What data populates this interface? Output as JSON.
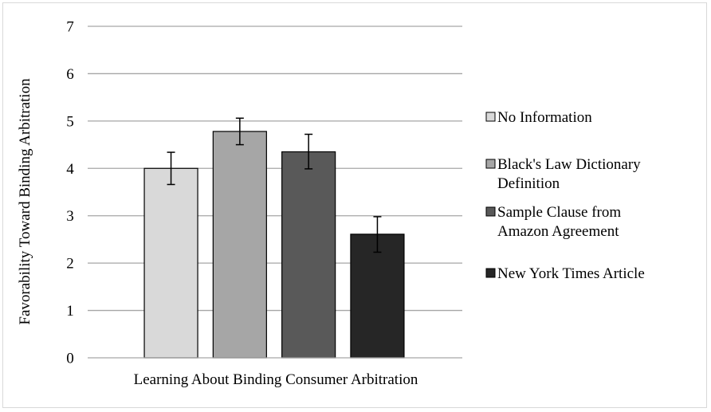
{
  "chart_data": {
    "type": "bar",
    "title": "",
    "xlabel": "Learning About Binding Consumer Arbitration",
    "ylabel": "Favorability Toward Binding Arbitration",
    "ylim": [
      0,
      7
    ],
    "yticks": [
      0,
      1,
      2,
      3,
      4,
      5,
      6,
      7
    ],
    "grid": true,
    "legend_position": "right",
    "categories": [
      "Learning About Binding Consumer Arbitration"
    ],
    "series": [
      {
        "name": "No Information",
        "legend_lines": [
          "No Information"
        ],
        "color": "#d9d9d9",
        "values": [
          4.0
        ],
        "error": [
          [
            3.66,
            4.34
          ]
        ]
      },
      {
        "name": "Black's Law Dictionary Definition",
        "legend_lines": [
          "Black's Law Dictionary",
          "Definition"
        ],
        "color": "#a6a6a6",
        "values": [
          4.78
        ],
        "error": [
          [
            4.5,
            5.06
          ]
        ]
      },
      {
        "name": "Sample Clause from Amazon Agreement",
        "legend_lines": [
          "Sample Clause from",
          "Amazon Agreement"
        ],
        "color": "#595959",
        "values": [
          4.35
        ],
        "error": [
          [
            3.99,
            4.72
          ]
        ]
      },
      {
        "name": "New York Times Article",
        "legend_lines": [
          "New York Times Article"
        ],
        "color": "#262626",
        "values": [
          2.61
        ],
        "error": [
          [
            2.23,
            2.98
          ]
        ]
      }
    ]
  }
}
